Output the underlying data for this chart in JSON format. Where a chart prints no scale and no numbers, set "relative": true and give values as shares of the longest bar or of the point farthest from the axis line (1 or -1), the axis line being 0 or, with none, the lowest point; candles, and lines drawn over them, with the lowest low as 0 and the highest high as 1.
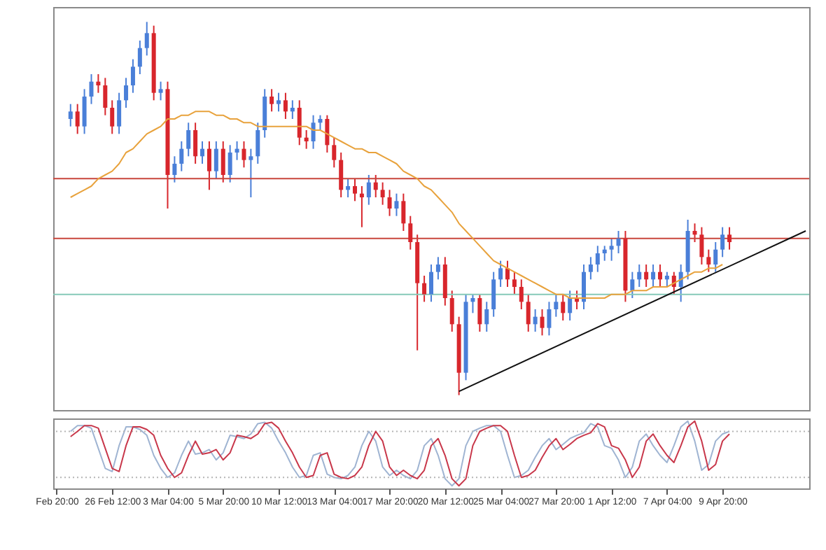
{
  "chart_data": [
    {
      "type": "candlestick",
      "relative": true,
      "tick_labels": false,
      "categories": [
        null,
        null,
        null,
        null,
        null,
        null,
        null,
        null,
        null,
        null,
        null,
        null,
        null,
        null,
        null,
        null,
        null,
        null,
        null,
        null,
        null,
        null,
        null,
        null,
        null,
        null,
        null,
        null,
        null,
        null,
        null,
        null,
        null,
        null,
        null,
        null,
        null,
        null,
        null,
        null,
        null,
        null,
        null,
        null,
        null,
        null,
        null,
        null,
        null,
        null,
        null,
        null,
        null,
        null,
        null,
        null,
        null,
        null,
        null,
        null,
        null,
        null,
        null,
        null,
        null,
        null,
        null,
        null,
        null,
        null,
        null,
        null,
        null,
        null,
        null,
        null,
        null,
        null,
        null,
        null,
        null,
        null,
        null,
        null,
        null,
        null,
        null,
        null,
        null,
        null,
        null,
        null,
        null,
        null,
        null,
        null,
        null,
        null,
        null,
        null,
        null,
        null,
        null,
        null,
        null,
        null,
        null,
        null,
        null
      ],
      "ohlc": [
        null,
        null,
        [
          0.74,
          0.78,
          0.72,
          0.76
        ],
        [
          0.76,
          0.78,
          0.7,
          0.72
        ],
        [
          0.72,
          0.82,
          0.7,
          0.8
        ],
        [
          0.8,
          0.86,
          0.78,
          0.84
        ],
        [
          0.84,
          0.86,
          0.81,
          0.83
        ],
        [
          0.83,
          0.85,
          0.75,
          0.77
        ],
        [
          0.77,
          0.79,
          0.7,
          0.72
        ],
        [
          0.72,
          0.81,
          0.7,
          0.79
        ],
        [
          0.79,
          0.85,
          0.77,
          0.83
        ],
        [
          0.83,
          0.9,
          0.81,
          0.88
        ],
        [
          0.88,
          0.95,
          0.86,
          0.93
        ],
        [
          0.93,
          1.0,
          0.91,
          0.97
        ],
        [
          0.97,
          0.99,
          0.79,
          0.81
        ],
        [
          0.81,
          0.84,
          0.79,
          0.82
        ],
        [
          0.82,
          0.84,
          0.5,
          0.59
        ],
        [
          0.59,
          0.64,
          0.57,
          0.62
        ],
        [
          0.62,
          0.68,
          0.6,
          0.66
        ],
        [
          0.66,
          0.73,
          0.64,
          0.71
        ],
        [
          0.71,
          0.73,
          0.62,
          0.64
        ],
        [
          0.64,
          0.68,
          0.62,
          0.66
        ],
        [
          0.66,
          0.68,
          0.55,
          0.6
        ],
        [
          0.6,
          0.68,
          0.58,
          0.66
        ],
        [
          0.66,
          0.68,
          0.57,
          0.59
        ],
        [
          0.59,
          0.67,
          0.57,
          0.65
        ],
        [
          0.65,
          0.68,
          0.63,
          0.66
        ],
        [
          0.66,
          0.68,
          0.61,
          0.63
        ],
        [
          0.63,
          0.66,
          0.53,
          0.64
        ],
        [
          0.64,
          0.73,
          0.62,
          0.71
        ],
        [
          0.71,
          0.82,
          0.69,
          0.8
        ],
        [
          0.8,
          0.82,
          0.76,
          0.78
        ],
        [
          0.78,
          0.81,
          0.76,
          0.79
        ],
        [
          0.79,
          0.81,
          0.74,
          0.76
        ],
        [
          0.76,
          0.79,
          0.74,
          0.77
        ],
        [
          0.77,
          0.79,
          0.67,
          0.69
        ],
        [
          0.69,
          0.71,
          0.66,
          0.68
        ],
        [
          0.68,
          0.75,
          0.66,
          0.73
        ],
        [
          0.73,
          0.75,
          0.71,
          0.74
        ],
        [
          0.74,
          0.75,
          0.65,
          0.67
        ],
        [
          0.67,
          0.69,
          0.61,
          0.63
        ],
        [
          0.63,
          0.65,
          0.53,
          0.55
        ],
        [
          0.55,
          0.58,
          0.53,
          0.56
        ],
        [
          0.56,
          0.58,
          0.52,
          0.54
        ],
        [
          0.54,
          0.56,
          0.45,
          0.53
        ],
        [
          0.53,
          0.59,
          0.51,
          0.57
        ],
        [
          0.57,
          0.59,
          0.53,
          0.55
        ],
        [
          0.55,
          0.57,
          0.51,
          0.53
        ],
        [
          0.53,
          0.55,
          0.48,
          0.5
        ],
        [
          0.5,
          0.54,
          0.48,
          0.52
        ],
        [
          0.52,
          0.54,
          0.44,
          0.46
        ],
        [
          0.46,
          0.48,
          0.39,
          0.41
        ],
        [
          0.41,
          0.43,
          0.12,
          0.3
        ],
        [
          0.3,
          0.32,
          0.25,
          0.27
        ],
        [
          0.27,
          0.35,
          0.25,
          0.33
        ],
        [
          0.33,
          0.37,
          0.31,
          0.35
        ],
        [
          0.35,
          0.37,
          0.24,
          0.26
        ],
        [
          0.26,
          0.28,
          0.17,
          0.19
        ],
        [
          0.19,
          0.21,
          0,
          0.06
        ],
        [
          0.06,
          0.27,
          0.04,
          0.25
        ],
        [
          0.25,
          0.27,
          0.22,
          0.26
        ],
        [
          0.26,
          0.27,
          0.17,
          0.19
        ],
        [
          0.19,
          0.25,
          0.17,
          0.23
        ],
        [
          0.23,
          0.33,
          0.21,
          0.31
        ],
        [
          0.31,
          0.36,
          0.29,
          0.34
        ],
        [
          0.34,
          0.36,
          0.29,
          0.31
        ],
        [
          0.31,
          0.33,
          0.27,
          0.29
        ],
        [
          0.29,
          0.31,
          0.23,
          0.25
        ],
        [
          0.25,
          0.27,
          0.17,
          0.19
        ],
        [
          0.19,
          0.23,
          0.17,
          0.21
        ],
        [
          0.21,
          0.23,
          0.16,
          0.18
        ],
        [
          0.18,
          0.25,
          0.16,
          0.23
        ],
        [
          0.23,
          0.27,
          0.21,
          0.25
        ],
        [
          0.25,
          0.27,
          0.2,
          0.22
        ],
        [
          0.22,
          0.28,
          0.2,
          0.26
        ],
        [
          0.26,
          0.28,
          0.23,
          0.25
        ],
        [
          0.25,
          0.35,
          0.23,
          0.33
        ],
        [
          0.33,
          0.37,
          0.31,
          0.35
        ],
        [
          0.35,
          0.4,
          0.33,
          0.38
        ],
        [
          0.38,
          0.4,
          0.36,
          0.39
        ],
        [
          0.39,
          0.42,
          0.36,
          0.4
        ],
        [
          0.4,
          0.44,
          0.38,
          0.42
        ],
        [
          0.42,
          0.44,
          0.25,
          0.28
        ],
        [
          0.28,
          0.33,
          0.26,
          0.31
        ],
        [
          0.31,
          0.35,
          0.29,
          0.33
        ],
        [
          0.33,
          0.35,
          0.29,
          0.31
        ],
        [
          0.31,
          0.35,
          0.29,
          0.33
        ],
        [
          0.33,
          0.35,
          0.29,
          0.31
        ],
        [
          0.31,
          0.33,
          0.29,
          0.32
        ],
        [
          0.32,
          0.33,
          0.27,
          0.29
        ],
        [
          0.29,
          0.35,
          0.25,
          0.33
        ],
        [
          0.33,
          0.47,
          0.31,
          0.44
        ],
        [
          0.44,
          0.46,
          0.41,
          0.43
        ],
        [
          0.43,
          0.45,
          0.35,
          0.37
        ],
        [
          0.37,
          0.39,
          0.33,
          0.35
        ],
        [
          0.35,
          0.41,
          0.33,
          0.39
        ],
        [
          0.39,
          0.45,
          0.37,
          0.43
        ],
        [
          0.43,
          0.45,
          0.39,
          0.41
        ],
        null,
        null,
        null,
        null,
        null,
        null,
        null,
        null,
        null,
        null,
        null
      ],
      "colors": [
        null,
        null,
        "#4a7fd8",
        "#d8262c",
        "#4a7fd8",
        "#4a7fd8",
        "#d8262c",
        "#d8262c",
        "#d8262c",
        "#4a7fd8",
        "#4a7fd8",
        "#4a7fd8",
        "#4a7fd8",
        "#4a7fd8",
        "#d8262c",
        "#4a7fd8",
        "#d8262c",
        "#4a7fd8",
        "#4a7fd8",
        "#4a7fd8",
        "#d8262c",
        "#4a7fd8",
        "#d8262c",
        "#4a7fd8",
        "#d8262c",
        "#4a7fd8",
        "#4a7fd8",
        "#d8262c",
        "#4a7fd8",
        "#4a7fd8",
        "#4a7fd8",
        "#d8262c",
        "#4a7fd8",
        "#d8262c",
        "#4a7fd8",
        "#d8262c",
        "#d8262c",
        "#4a7fd8",
        "#4a7fd8",
        "#d8262c",
        "#d8262c",
        "#d8262c",
        "#4a7fd8",
        "#d8262c",
        "#d8262c",
        "#4a7fd8",
        "#d8262c",
        "#d8262c",
        "#d8262c",
        "#4a7fd8",
        "#d8262c",
        "#d8262c",
        "#d8262c",
        "#d8262c",
        "#4a7fd8",
        "#4a7fd8",
        "#d8262c",
        "#d8262c",
        "#d8262c",
        "#4a7fd8",
        "#4a7fd8",
        "#d8262c",
        "#4a7fd8",
        "#4a7fd8",
        "#4a7fd8",
        "#d8262c",
        "#d8262c",
        "#d8262c",
        "#d8262c",
        "#4a7fd8",
        "#d8262c",
        "#4a7fd8",
        "#4a7fd8",
        "#d8262c",
        "#4a7fd8",
        "#d8262c",
        "#4a7fd8",
        "#4a7fd8",
        "#4a7fd8",
        "#4a7fd8",
        "#4a7fd8",
        "#4a7fd8",
        "#d8262c",
        "#4a7fd8",
        "#4a7fd8",
        "#d8262c",
        "#4a7fd8",
        "#d8262c",
        "#4a7fd8",
        "#d8262c",
        "#4a7fd8",
        "#4a7fd8",
        "#d8262c",
        "#d8262c",
        "#d8262c",
        "#4a7fd8",
        "#4a7fd8",
        "#d8262c",
        null,
        null,
        null,
        null,
        null,
        null,
        null,
        null,
        null,
        null,
        null
      ],
      "series": [
        {
          "type": "line",
          "color": "#e8a23c",
          "values": [
            null,
            null,
            0.53,
            0.54,
            0.55,
            0.56,
            0.58,
            0.59,
            0.6,
            0.62,
            0.65,
            0.66,
            0.68,
            0.7,
            0.71,
            0.72,
            0.74,
            0.74,
            0.75,
            0.75,
            0.76,
            0.76,
            0.76,
            0.75,
            0.75,
            0.74,
            0.74,
            0.73,
            0.73,
            0.72,
            0.72,
            0.72,
            0.72,
            0.72,
            0.72,
            0.72,
            0.72,
            0.71,
            0.71,
            0.7,
            0.69,
            0.68,
            0.67,
            0.66,
            0.66,
            0.65,
            0.65,
            0.64,
            0.63,
            0.62,
            0.6,
            0.59,
            0.58,
            0.56,
            0.55,
            0.53,
            0.51,
            0.49,
            0.46,
            0.44,
            0.42,
            0.4,
            0.38,
            0.36,
            0.35,
            0.34,
            0.33,
            0.32,
            0.31,
            0.3,
            0.29,
            0.28,
            0.27,
            0.27,
            0.26,
            0.26,
            0.26,
            0.26,
            0.26,
            0.26,
            0.27,
            0.27,
            0.27,
            0.28,
            0.28,
            0.28,
            0.29,
            0.29,
            0.29,
            0.3,
            0.31,
            0.32,
            0.33,
            0.33,
            0.34,
            0.34,
            0.35,
            null,
            null,
            null,
            null,
            null,
            null,
            null,
            null,
            null,
            null,
            null,
            null
          ]
        },
        {
          "type": "line",
          "color": "#111111",
          "values": [
            null,
            null,
            null,
            null,
            null,
            null,
            null,
            null,
            null,
            null,
            null,
            null,
            null,
            null,
            null,
            null,
            null,
            null,
            null,
            null,
            null,
            null,
            null,
            null,
            null,
            null,
            null,
            null,
            null,
            null,
            null,
            null,
            null,
            null,
            null,
            null,
            null,
            null,
            null,
            null,
            null,
            null,
            null,
            null,
            null,
            null,
            null,
            null,
            null,
            null,
            null,
            null,
            null,
            null,
            null,
            null,
            null,
            null,
            0.01,
            null,
            null,
            null,
            null,
            null,
            null,
            null,
            null,
            null,
            null,
            null,
            null,
            null,
            null,
            null,
            null,
            null,
            null,
            null,
            null,
            null,
            null,
            null,
            null,
            null,
            null,
            null,
            null,
            null,
            null,
            null,
            null,
            null,
            null,
            null,
            null,
            null,
            null,
            null,
            null,
            null,
            null,
            null,
            null,
            null,
            null,
            null,
            null,
            null,
            0.44
          ]
        }
      ],
      "ref_lines": [
        {
          "axis": "y",
          "value": 0.58,
          "color": "#c8453c"
        },
        {
          "axis": "y",
          "value": 0.42,
          "color": "#c8453c"
        },
        {
          "axis": "y",
          "value": 0.27,
          "color": "#86c9b8"
        }
      ]
    },
    {
      "type": "line",
      "relative": true,
      "tick_labels": "x",
      "categories": [
        "Feb 20:00",
        null,
        null,
        null,
        null,
        null,
        null,
        null,
        "26 Feb 12:00",
        null,
        null,
        null,
        null,
        null,
        null,
        null,
        "3 Mar 04:00",
        null,
        null,
        null,
        null,
        null,
        null,
        null,
        "5 Mar 20:00",
        null,
        null,
        null,
        null,
        null,
        null,
        null,
        "10 Mar 12:00",
        null,
        null,
        null,
        null,
        null,
        null,
        null,
        "13 Mar 04:00",
        null,
        null,
        null,
        null,
        null,
        null,
        null,
        "17 Mar 20:00",
        null,
        null,
        null,
        null,
        null,
        null,
        null,
        "20 Mar 12:00",
        null,
        null,
        null,
        null,
        null,
        null,
        null,
        "25 Mar 04:00",
        null,
        null,
        null,
        null,
        null,
        null,
        null,
        "27 Mar 20:00",
        null,
        null,
        null,
        null,
        null,
        null,
        null,
        "1 Apr 12:00",
        null,
        null,
        null,
        null,
        null,
        null,
        null,
        "7 Apr 04:00",
        null,
        null,
        null,
        null,
        null,
        null,
        null,
        "9 Apr 20:00",
        null,
        null,
        null,
        null,
        null,
        null,
        null,
        null,
        null,
        null,
        null,
        null
      ],
      "series": [
        {
          "color": "#9fb4d2",
          "values": [
            null,
            null,
            0.84,
            0.93,
            0.93,
            0.89,
            0.58,
            0.27,
            0.22,
            0.62,
            0.91,
            0.91,
            0.87,
            0.78,
            0.47,
            0.27,
            0.13,
            0.2,
            0.47,
            0.69,
            0.49,
            0.51,
            0.56,
            0.4,
            0.51,
            0.78,
            0.76,
            0.73,
            0.8,
            0.96,
            0.98,
            0.89,
            0.69,
            0.51,
            0.29,
            0.13,
            0.16,
            0.47,
            0.51,
            0.18,
            0.13,
            0.11,
            0.16,
            0.29,
            0.62,
            0.84,
            0.69,
            0.29,
            0.16,
            0.24,
            0.16,
            0.11,
            0.24,
            0.62,
            0.73,
            0.47,
            0.11,
            0,
            0.11,
            0.62,
            0.84,
            0.89,
            0.93,
            0.93,
            0.84,
            0.47,
            0.13,
            0.16,
            0.24,
            0.44,
            0.62,
            0.73,
            0.56,
            0.64,
            0.73,
            0.78,
            0.82,
            0.96,
            0.91,
            0.62,
            0.58,
            0.4,
            0.13,
            0.29,
            0.69,
            0.8,
            0.62,
            0.47,
            0.36,
            0.62,
            0.91,
            1,
            0.69,
            0.24,
            0.33,
            0.69,
            0.8,
            0.84,
            null,
            null,
            null,
            null,
            null,
            null,
            null,
            null,
            null,
            null,
            null
          ]
        },
        {
          "color": "#c8374a",
          "values": [
            null,
            null,
            0.76,
            0.84,
            0.93,
            0.93,
            0.89,
            0.58,
            0.27,
            0.22,
            0.62,
            0.91,
            0.91,
            0.87,
            0.78,
            0.47,
            0.27,
            0.13,
            0.2,
            0.47,
            0.69,
            0.49,
            0.51,
            0.56,
            0.4,
            0.51,
            0.78,
            0.76,
            0.73,
            0.8,
            0.96,
            0.98,
            0.89,
            0.69,
            0.51,
            0.29,
            0.13,
            0.16,
            0.47,
            0.51,
            0.18,
            0.13,
            0.11,
            0.16,
            0.29,
            0.62,
            0.84,
            0.69,
            0.29,
            0.16,
            0.24,
            0.16,
            0.11,
            0.24,
            0.62,
            0.73,
            0.47,
            0.11,
            0,
            0.11,
            0.62,
            0.84,
            0.89,
            0.93,
            0.93,
            0.84,
            0.47,
            0.13,
            0.16,
            0.24,
            0.44,
            0.62,
            0.73,
            0.56,
            0.64,
            0.73,
            0.78,
            0.82,
            0.96,
            0.91,
            0.62,
            0.58,
            0.4,
            0.13,
            0.29,
            0.69,
            0.8,
            0.62,
            0.47,
            0.36,
            0.62,
            0.91,
            1,
            0.69,
            0.24,
            0.33,
            0.69,
            0.8,
            null,
            null,
            null,
            null,
            null,
            null,
            null,
            null,
            null,
            null,
            null
          ]
        }
      ],
      "ref_lines": [
        {
          "axis": "y",
          "value": 0.84,
          "color": "#b5b5b5",
          "line_style": "dotted"
        },
        {
          "axis": "y",
          "value": 0.13,
          "color": "#b5b5b5",
          "line_style": "dotted"
        }
      ]
    }
  ]
}
